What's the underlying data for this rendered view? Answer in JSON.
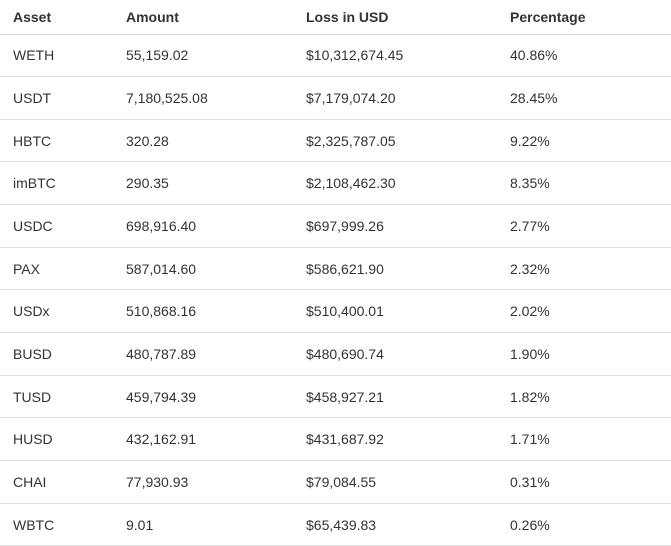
{
  "colors": {
    "background": "#ffffff",
    "text": "#333333",
    "header_border": "#d6d6d6",
    "row_border": "#e2e2e2"
  },
  "table": {
    "columns": [
      "Asset",
      "Amount",
      "Loss in USD",
      "Percentage"
    ],
    "rows": [
      {
        "asset": "WETH",
        "amount": "55,159.02",
        "loss_in_usd": "$10,312,674.45",
        "percentage": "40.86%"
      },
      {
        "asset": "USDT",
        "amount": "7,180,525.08",
        "loss_in_usd": "$7,179,074.20",
        "percentage": "28.45%"
      },
      {
        "asset": "HBTC",
        "amount": "320.28",
        "loss_in_usd": "$2,325,787.05",
        "percentage": "9.22%"
      },
      {
        "asset": "imBTC",
        "amount": "290.35",
        "loss_in_usd": "$2,108,462.30",
        "percentage": "8.35%"
      },
      {
        "asset": "USDC",
        "amount": "698,916.40",
        "loss_in_usd": "$697,999.26",
        "percentage": "2.77%"
      },
      {
        "asset": "PAX",
        "amount": "587,014.60",
        "loss_in_usd": "$586,621.90",
        "percentage": "2.32%"
      },
      {
        "asset": "USDx",
        "amount": "510,868.16",
        "loss_in_usd": "$510,400.01",
        "percentage": "2.02%"
      },
      {
        "asset": "BUSD",
        "amount": "480,787.89",
        "loss_in_usd": "$480,690.74",
        "percentage": "1.90%"
      },
      {
        "asset": "TUSD",
        "amount": "459,794.39",
        "loss_in_usd": "$458,927.21",
        "percentage": "1.82%"
      },
      {
        "asset": "HUSD",
        "amount": "432,162.91",
        "loss_in_usd": "$431,687.92",
        "percentage": "1.71%"
      },
      {
        "asset": "CHAI",
        "amount": "77,930.93",
        "loss_in_usd": "$79,084.55",
        "percentage": "0.31%"
      },
      {
        "asset": "WBTC",
        "amount": "9.01",
        "loss_in_usd": "$65,439.83",
        "percentage": "0.26%"
      }
    ]
  },
  "chart_data": {
    "type": "table",
    "columns": [
      "Asset",
      "Amount",
      "Loss in USD",
      "Percentage"
    ],
    "rows": [
      [
        "WETH",
        "55,159.02",
        "$10,312,674.45",
        "40.86%"
      ],
      [
        "USDT",
        "7,180,525.08",
        "$7,179,074.20",
        "28.45%"
      ],
      [
        "HBTC",
        "320.28",
        "$2,325,787.05",
        "9.22%"
      ],
      [
        "imBTC",
        "290.35",
        "$2,108,462.30",
        "8.35%"
      ],
      [
        "USDC",
        "698,916.40",
        "$697,999.26",
        "2.77%"
      ],
      [
        "PAX",
        "587,014.60",
        "$586,621.90",
        "2.32%"
      ],
      [
        "USDx",
        "510,868.16",
        "$510,400.01",
        "2.02%"
      ],
      [
        "BUSD",
        "480,787.89",
        "$480,690.74",
        "1.90%"
      ],
      [
        "TUSD",
        "459,794.39",
        "$458,927.21",
        "1.82%"
      ],
      [
        "HUSD",
        "432,162.91",
        "$431,687.92",
        "1.71%"
      ],
      [
        "CHAI",
        "77,930.93",
        "$79,084.55",
        "0.31%"
      ],
      [
        "WBTC",
        "9.01",
        "$65,439.83",
        "0.26%"
      ]
    ],
    "layout": {
      "grid": "horizontal-row-separators-only",
      "header": "bold-left-aligned"
    },
    "numeric": {
      "amount": [
        55159.02,
        7180525.08,
        320.28,
        290.35,
        698916.4,
        587014.6,
        510868.16,
        480787.89,
        459794.39,
        432162.91,
        77930.93,
        9.01
      ],
      "loss_in_usd": [
        10312674.45,
        7179074.2,
        2325787.05,
        2108462.3,
        697999.26,
        586621.9,
        510400.01,
        480690.74,
        458927.21,
        431687.92,
        79084.55,
        65439.83
      ],
      "percentage": [
        40.86,
        28.45,
        9.22,
        8.35,
        2.77,
        2.32,
        2.02,
        1.9,
        1.82,
        1.71,
        0.31,
        0.26
      ]
    }
  }
}
